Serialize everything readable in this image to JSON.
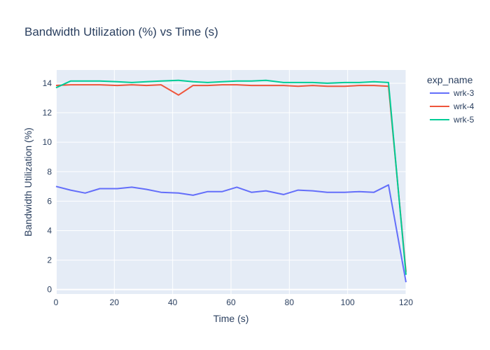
{
  "chart_data": {
    "type": "line",
    "title": "Bandwidth Utilization (%) vs Time (s)",
    "xlabel": "Time (s)",
    "ylabel": "Bandwidth Utilization (%)",
    "xlim": [
      0,
      120
    ],
    "ylim": [
      -0.3,
      14.9
    ],
    "x_ticks": [
      0,
      20,
      40,
      60,
      80,
      100,
      120
    ],
    "y_ticks": [
      0,
      2,
      4,
      6,
      8,
      10,
      12,
      14
    ],
    "grid": true,
    "legend": {
      "title": "exp_name",
      "placement": "right"
    },
    "series": [
      {
        "name": "wrk-3",
        "color": "#636efa",
        "x": [
          0,
          5,
          10,
          15,
          21,
          26,
          31,
          36,
          42,
          47,
          52,
          57,
          62,
          67,
          72,
          78,
          83,
          88,
          93,
          99,
          104,
          109,
          114,
          120
        ],
        "y": [
          7.0,
          6.75,
          6.55,
          6.85,
          6.85,
          6.95,
          6.8,
          6.6,
          6.55,
          6.4,
          6.65,
          6.65,
          6.95,
          6.6,
          6.7,
          6.45,
          6.75,
          6.7,
          6.6,
          6.6,
          6.65,
          6.6,
          7.1,
          0.5
        ]
      },
      {
        "name": "wrk-4",
        "color": "#ef553b",
        "x": [
          0,
          5,
          10,
          15,
          21,
          26,
          31,
          36,
          42,
          47,
          52,
          57,
          62,
          67,
          72,
          78,
          83,
          88,
          93,
          99,
          104,
          109,
          114,
          120
        ],
        "y": [
          13.85,
          13.9,
          13.9,
          13.9,
          13.85,
          13.9,
          13.85,
          13.9,
          13.2,
          13.85,
          13.85,
          13.9,
          13.9,
          13.85,
          13.85,
          13.85,
          13.8,
          13.85,
          13.8,
          13.8,
          13.85,
          13.85,
          13.8,
          1.2
        ]
      },
      {
        "name": "wrk-5",
        "color": "#00cc96",
        "x": [
          0,
          5,
          10,
          15,
          21,
          26,
          31,
          36,
          42,
          47,
          52,
          57,
          62,
          67,
          72,
          78,
          83,
          88,
          93,
          99,
          104,
          109,
          114,
          120
        ],
        "y": [
          13.7,
          14.15,
          14.15,
          14.15,
          14.1,
          14.05,
          14.1,
          14.15,
          14.2,
          14.1,
          14.05,
          14.1,
          14.15,
          14.15,
          14.2,
          14.05,
          14.05,
          14.05,
          14.0,
          14.05,
          14.05,
          14.1,
          14.05,
          1.0
        ]
      }
    ]
  }
}
